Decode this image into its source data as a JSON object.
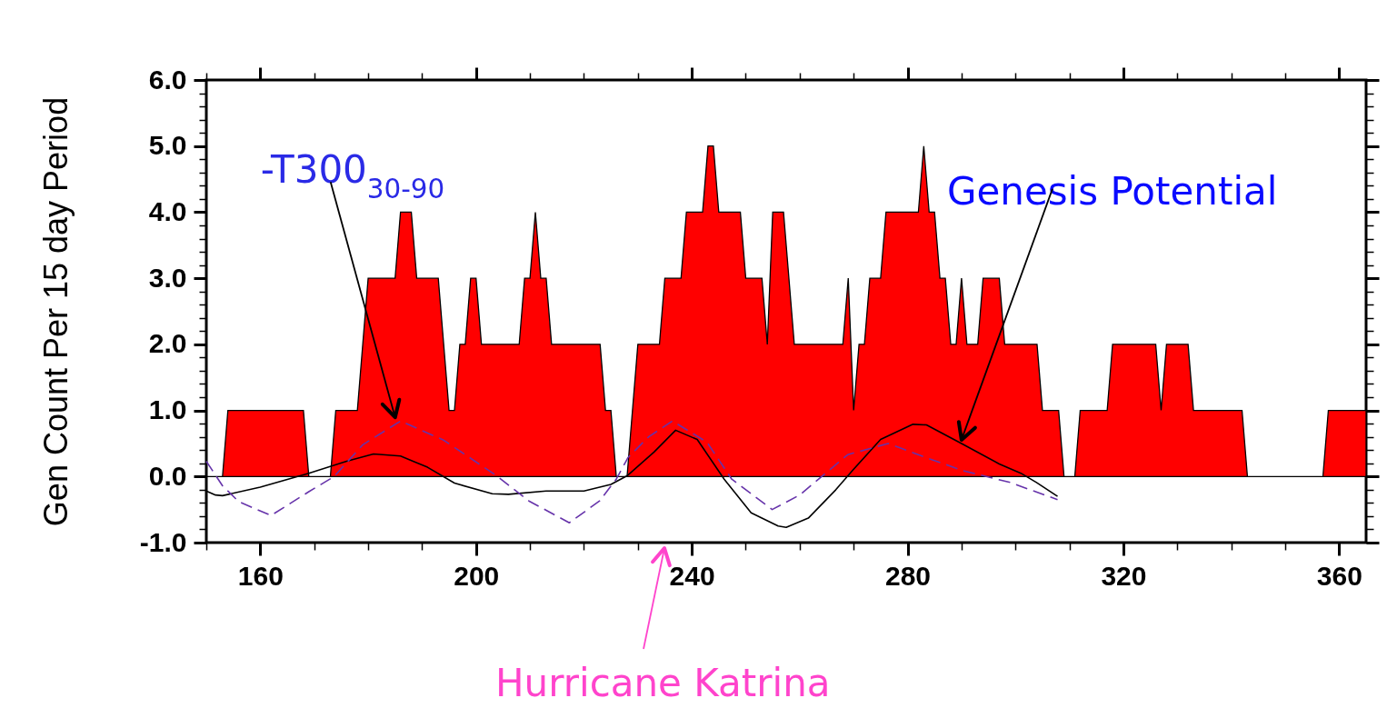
{
  "chart_data": {
    "type": "area",
    "ylabel": "Gen Count Per 15 day Period",
    "xlim": [
      150,
      365
    ],
    "xticks": [
      {
        "value": 150,
        "label": null
      },
      160,
      {
        "value": 170,
        "label": null
      },
      {
        "value": 180,
        "label": null
      },
      {
        "value": 190,
        "label": null
      },
      200,
      {
        "value": 210,
        "label": null
      },
      {
        "value": 220,
        "label": null
      },
      {
        "value": 230,
        "label": null
      },
      240,
      {
        "value": 250,
        "label": null
      },
      {
        "value": 260,
        "label": null
      },
      {
        "value": 270,
        "label": null
      },
      280,
      {
        "value": 290,
        "label": null
      },
      {
        "value": 300,
        "label": null
      },
      {
        "value": 310,
        "label": null
      },
      320,
      {
        "value": 330,
        "label": null
      },
      {
        "value": 340,
        "label": null
      },
      {
        "value": 350,
        "label": null
      },
      360
    ],
    "ylim": [
      -1,
      6
    ],
    "yticks": [
      {
        "value": -1,
        "label": "-1.0"
      },
      {
        "value": -0.8,
        "label": null
      },
      {
        "value": -0.6,
        "label": null
      },
      {
        "value": -0.4,
        "label": null
      },
      {
        "value": -0.2,
        "label": null
      },
      {
        "value": 0,
        "label": "0.0"
      },
      {
        "value": 0.2,
        "label": null
      },
      {
        "value": 0.4,
        "label": null
      },
      {
        "value": 0.6,
        "label": null
      },
      {
        "value": 0.8,
        "label": null
      },
      {
        "value": 1,
        "label": "1.0"
      },
      {
        "value": 1.2,
        "label": null
      },
      {
        "value": 1.4,
        "label": null
      },
      {
        "value": 1.6,
        "label": null
      },
      {
        "value": 1.8,
        "label": null
      },
      {
        "value": 2,
        "label": "2.0"
      },
      {
        "value": 2.2,
        "label": null
      },
      {
        "value": 2.4,
        "label": null
      },
      {
        "value": 2.6,
        "label": null
      },
      {
        "value": 2.8,
        "label": null
      },
      {
        "value": 3,
        "label": "3.0"
      },
      {
        "value": 3.2,
        "label": null
      },
      {
        "value": 3.4,
        "label": null
      },
      {
        "value": 3.6,
        "label": null
      },
      {
        "value": 3.8,
        "label": null
      },
      {
        "value": 4,
        "label": "4.0"
      },
      {
        "value": 4.2,
        "label": null
      },
      {
        "value": 4.4,
        "label": null
      },
      {
        "value": 4.6,
        "label": null
      },
      {
        "value": 4.8,
        "label": null
      },
      {
        "value": 5,
        "label": "5.0"
      },
      {
        "value": 5.2,
        "label": null
      },
      {
        "value": 5.4,
        "label": null
      },
      {
        "value": 5.6,
        "label": null
      },
      {
        "value": 5.8,
        "label": null
      },
      {
        "value": 6,
        "label": "6.0"
      }
    ],
    "series": [
      {
        "color": "#ff0000",
        "x": [
          150,
          153,
          154,
          168,
          169,
          173,
          174,
          178,
          180,
          185,
          186,
          188,
          189,
          193,
          195,
          196,
          197,
          198,
          199,
          200,
          201,
          208,
          209,
          210,
          211,
          212,
          213,
          214,
          223,
          224,
          225,
          226,
          228,
          230,
          234,
          235,
          238,
          239,
          242,
          243,
          244,
          245,
          249,
          250,
          253,
          254,
          255,
          257,
          259,
          268,
          269,
          270,
          271,
          272,
          273,
          275,
          276,
          282,
          283,
          284,
          285,
          286,
          287,
          288,
          289,
          290,
          291,
          293,
          294,
          297,
          298,
          304,
          305,
          308,
          309,
          311,
          312,
          317,
          318,
          326,
          327,
          328,
          332,
          333,
          342,
          343,
          357,
          358,
          365
        ],
        "values": [
          0,
          0,
          1,
          1,
          0,
          0,
          1,
          1,
          3,
          3,
          4,
          4,
          3,
          3,
          1,
          1,
          2,
          2,
          3,
          3,
          2,
          2,
          3,
          3,
          4,
          3,
          3,
          2,
          2,
          1,
          1,
          0,
          0,
          2,
          2,
          3,
          3,
          4,
          4,
          5,
          5,
          4,
          4,
          3,
          3,
          2,
          4,
          4,
          2,
          2,
          3,
          1,
          2,
          2,
          3,
          3,
          4,
          4,
          5,
          4,
          4,
          3,
          3,
          2,
          2,
          3,
          2,
          2,
          3,
          3,
          2,
          2,
          1,
          1,
          0,
          0,
          1,
          1,
          2,
          2,
          1,
          2,
          2,
          1,
          1,
          0,
          0,
          1,
          1
        ]
      },
      {
        "type": "line",
        "color": "#000000",
        "x": [
          150,
          151.7,
          153,
          160,
          169,
          176,
          181,
          186,
          191,
          196,
          203,
          206,
          213,
          220,
          225,
          228,
          233,
          237,
          241,
          246,
          251,
          256,
          257.5,
          261.6,
          266.7,
          270,
          275,
          281,
          283.5,
          290,
          297,
          301,
          303.9,
          307.8
        ],
        "values": [
          -0.22,
          -0.28,
          -0.29,
          -0.16,
          0.05,
          0.23,
          0.34,
          0.31,
          0.14,
          -0.1,
          -0.26,
          -0.27,
          -0.22,
          -0.22,
          -0.12,
          0.01,
          0.37,
          0.7,
          0.56,
          -0.04,
          -0.55,
          -0.75,
          -0.77,
          -0.63,
          -0.2,
          0.11,
          0.56,
          0.79,
          0.78,
          0.5,
          0.19,
          0.05,
          -0.09,
          -0.3
        ]
      },
      {
        "type": "line",
        "color": "#6633aa",
        "line_style": "dashed",
        "x": [
          150,
          153,
          156,
          162,
          169,
          173.7,
          179,
          186,
          194,
          204,
          209.8,
          217.3,
          222.9,
          226,
          228.2,
          232,
          236.4,
          242.8,
          247.4,
          254.9,
          260,
          268.9,
          276.4,
          283.3,
          290.2,
          299,
          307.8
        ],
        "values": [
          0.23,
          -0.14,
          -0.38,
          -0.59,
          -0.23,
          0,
          0.48,
          0.84,
          0.55,
          0,
          -0.37,
          -0.7,
          -0.37,
          -0.04,
          0.29,
          0.6,
          0.84,
          0.52,
          -0.04,
          -0.5,
          -0.28,
          0.33,
          0.5,
          0.29,
          0.09,
          -0.09,
          -0.35
        ]
      }
    ],
    "annotations": [
      {
        "text": "-T300$_{30-90}$",
        "x": 185,
        "y": 0.84
      },
      {
        "text": "Genesis Potential",
        "x": 290,
        "y": 0.5
      },
      "Hurricane Katrina"
    ]
  }
}
